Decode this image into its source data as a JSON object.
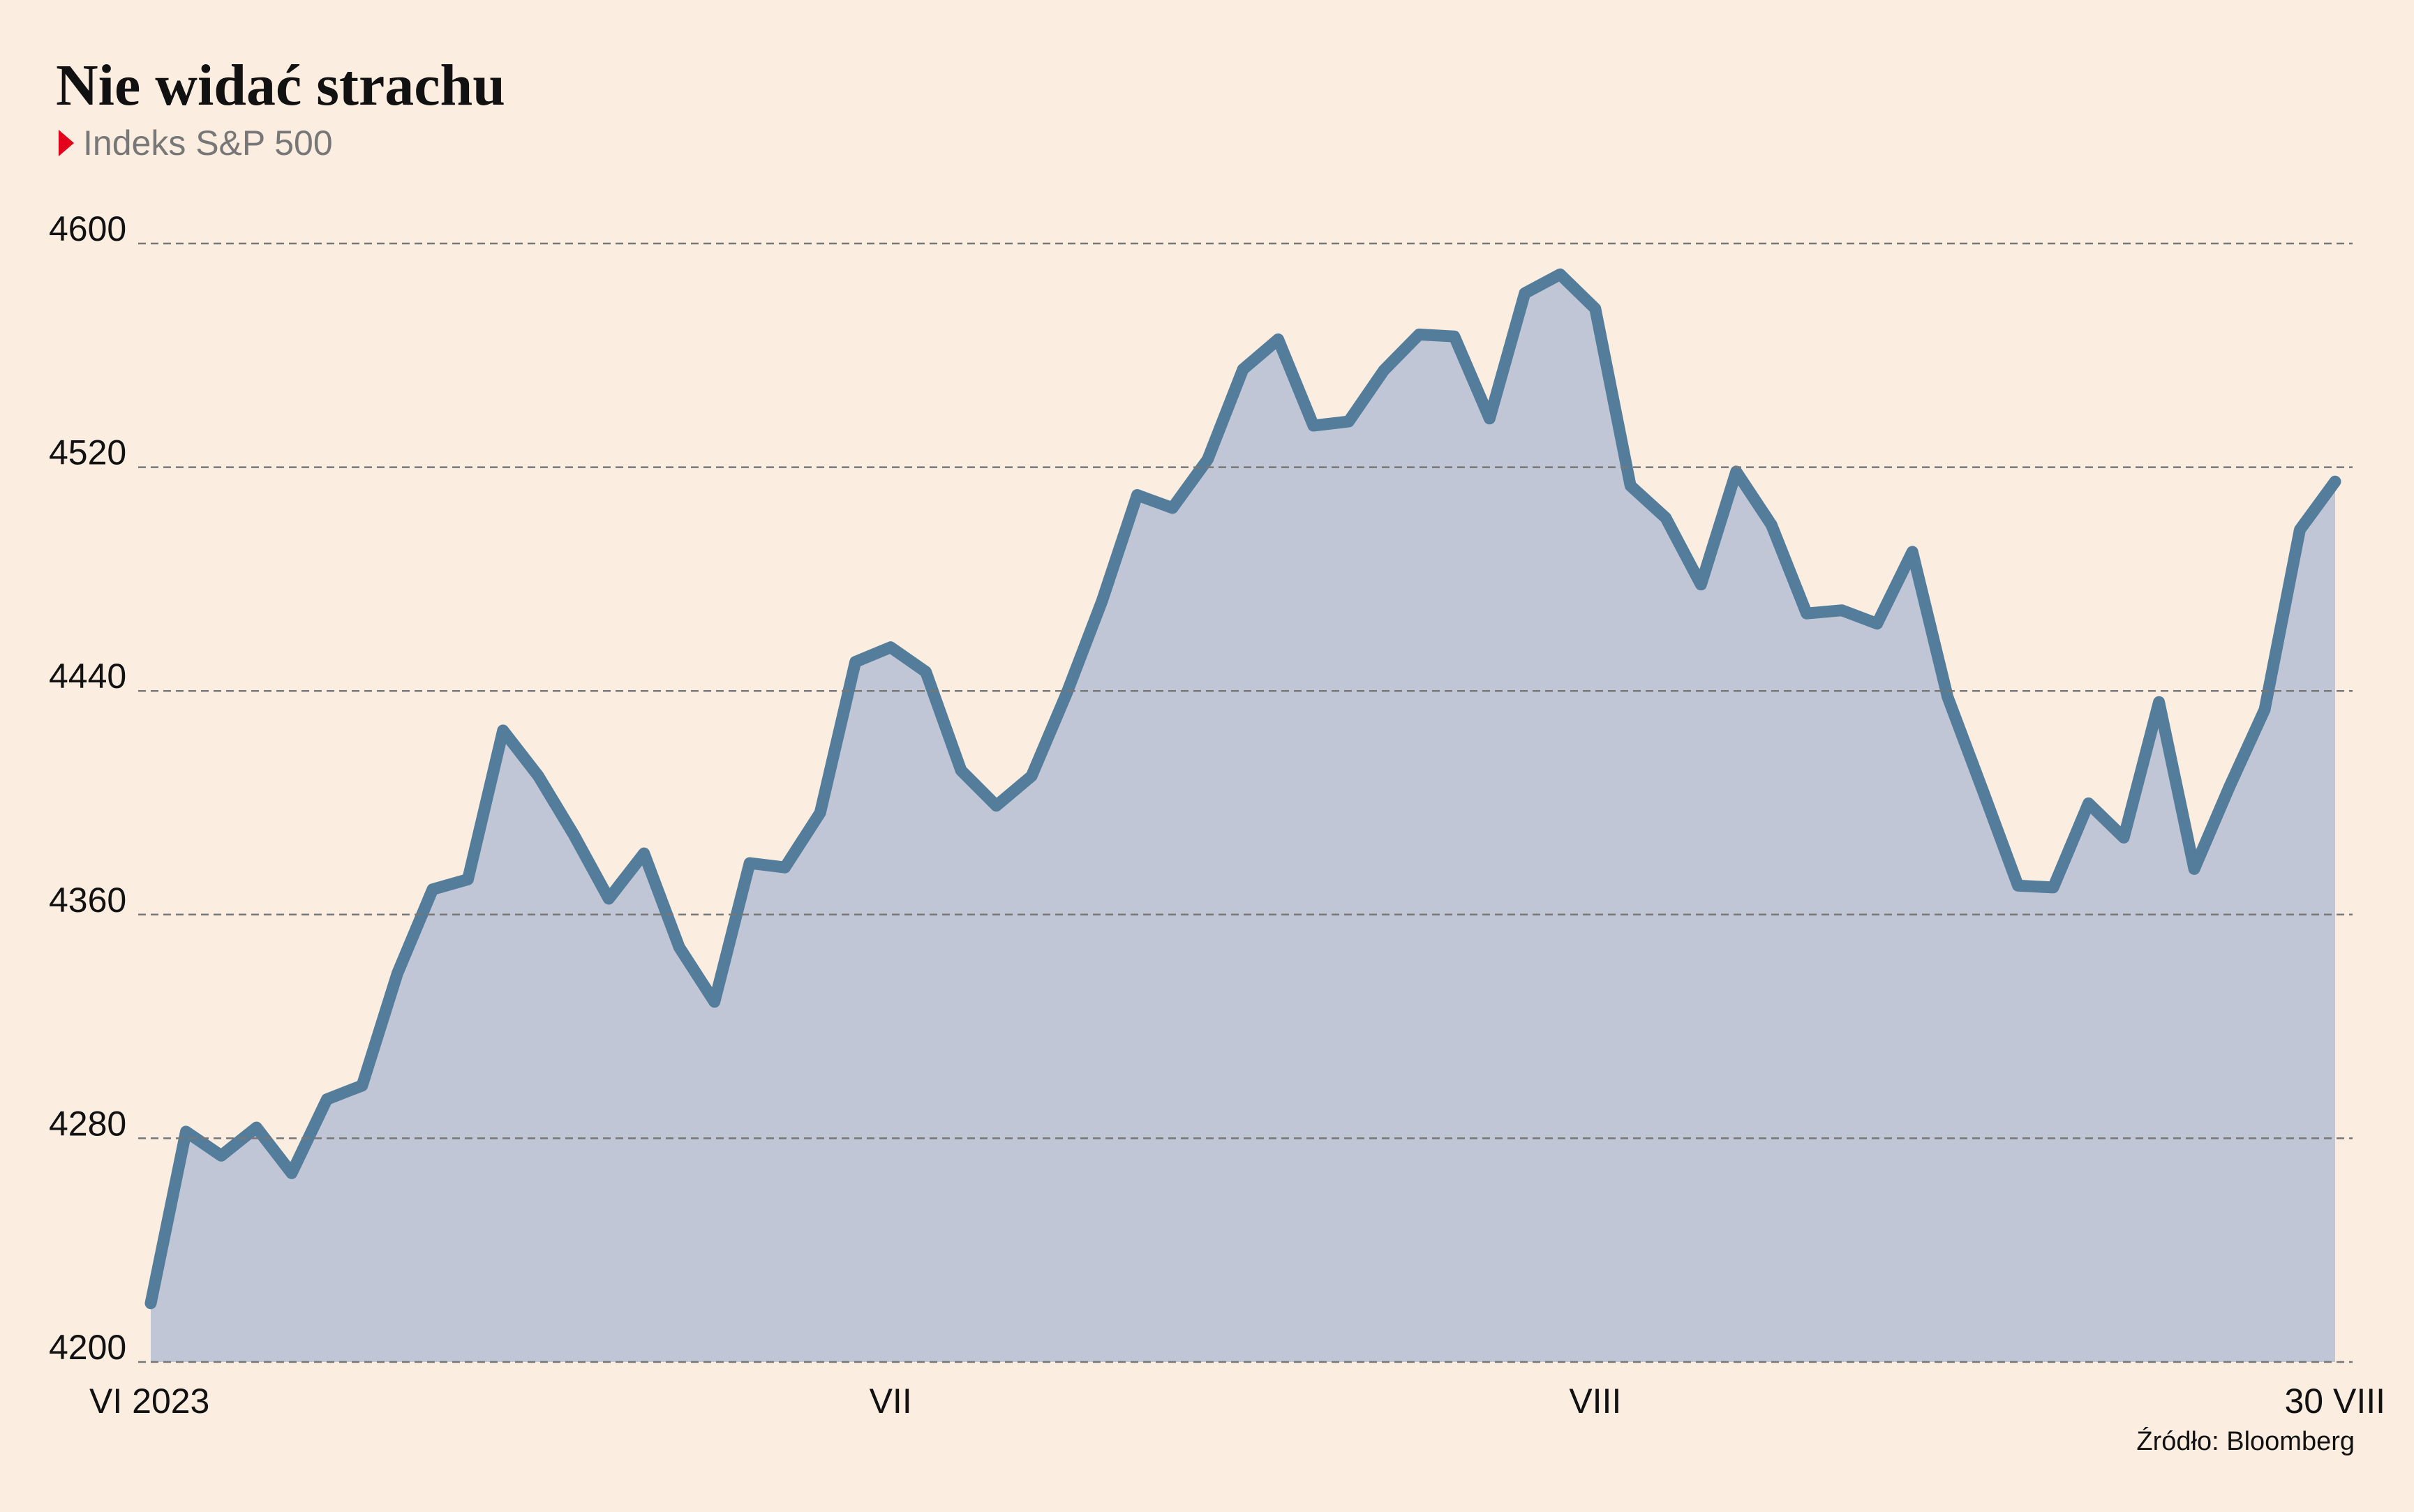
{
  "chart_data": {
    "type": "line",
    "title": "Nie widać strachu",
    "subtitle": "Indeks S&P 500",
    "source": "Źródło: Bloomberg",
    "categories": [
      "VI 2023",
      null,
      null,
      null,
      null,
      null,
      null,
      null,
      null,
      null,
      null,
      null,
      null,
      null,
      null,
      null,
      null,
      null,
      null,
      null,
      null,
      "VII",
      null,
      null,
      null,
      null,
      null,
      null,
      null,
      null,
      null,
      null,
      null,
      null,
      null,
      null,
      null,
      null,
      null,
      null,
      null,
      "VIII",
      null,
      null,
      null,
      null,
      null,
      null,
      null,
      null,
      null,
      null,
      null,
      null,
      null,
      null,
      null,
      null,
      null,
      null,
      null,
      null,
      "30 VIII"
    ],
    "values": [
      4221.02,
      4282.37,
      4273.79,
      4283.85,
      4267.52,
      4293.93,
      4298.86,
      4338.93,
      4369.01,
      4372.59,
      4425.84,
      4409.59,
      4388.71,
      4365.69,
      4381.89,
      4348.33,
      4328.82,
      4378.41,
      4376.86,
      4396.44,
      4450.38,
      4455.59,
      4446.82,
      4411.59,
      4398.95,
      4409.53,
      4439.26,
      4472.16,
      4510.04,
      4505.42,
      4522.79,
      4554.98,
      4565.72,
      4534.87,
      4536.34,
      4554.64,
      4567.46,
      4566.75,
      4537.41,
      4582.23,
      4588.96,
      4576.73,
      4513.39,
      4501.89,
      4478.03,
      4518.44,
      4499.38,
      4467.71,
      4468.83,
      4464.05,
      4489.72,
      4437.86,
      4404.33,
      4370.36,
      4369.71,
      4399.77,
      4387.55,
      4436.01,
      4376.31,
      4405.71,
      4433.31,
      4497.63,
      4514.87
    ],
    "color": "#537d9a",
    "area_color": "#c1c6d6",
    "ylim": [
      4200,
      4600
    ],
    "yticks": [
      4200,
      4280,
      4360,
      4440,
      4520,
      4600
    ],
    "grid": true
  }
}
